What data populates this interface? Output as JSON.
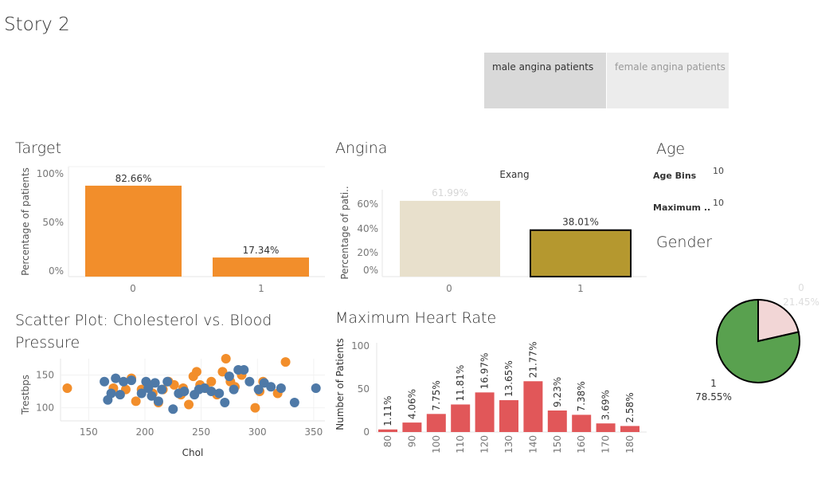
{
  "story": {
    "title": "Story 2",
    "tabs": [
      {
        "label": "male angina patients",
        "active": true
      },
      {
        "label": "female angina patients",
        "active": false
      }
    ]
  },
  "sheets": {
    "target": "Target",
    "angina": "Angina",
    "age": "Age",
    "gender": "Gender",
    "scatter": "Scatter Plot: Cholesterol vs. Blood Pressure",
    "heart_rate": "Maximum Heart Rate"
  },
  "age_filters": [
    {
      "label": "Age Bins",
      "value": "10"
    },
    {
      "label": "Maximum ..",
      "value": "10"
    }
  ],
  "colors": {
    "orange": "#f28e2b",
    "blue": "#4e79a7",
    "gold": "#b5982f",
    "beige": "#e8e0cc",
    "red": "#e15759",
    "green": "#59a14f",
    "pink": "#f2d6d6"
  },
  "chart_data": [
    {
      "id": "target",
      "type": "bar",
      "categories": [
        "0",
        "1"
      ],
      "values": [
        82.66,
        17.34
      ],
      "labels": [
        "82.66%",
        "17.34%"
      ],
      "ylabel": "Percentage of patients",
      "yticks": [
        "0%",
        "50%",
        "100%"
      ],
      "ylim": [
        0,
        100
      ]
    },
    {
      "id": "angina",
      "type": "bar",
      "title": "Exang",
      "categories": [
        "0",
        "1"
      ],
      "values": [
        61.99,
        38.01
      ],
      "labels": [
        "61.99%",
        "38.01%"
      ],
      "ylabel": "Percentage of pati..",
      "yticks": [
        "0%",
        "20%",
        "40%",
        "60%"
      ],
      "ylim": [
        0,
        70
      ]
    },
    {
      "id": "gender",
      "type": "pie",
      "slices": [
        {
          "label": "0",
          "value": 21.45,
          "pct": "21.45%"
        },
        {
          "label": "1",
          "value": 78.55,
          "pct": "78.55%"
        }
      ]
    },
    {
      "id": "scatter",
      "type": "scatter",
      "xlabel": "Chol",
      "ylabel": "Trestbps",
      "xticks": [
        "150",
        "200",
        "250",
        "300",
        "350"
      ],
      "yticks": [
        "100",
        "150"
      ],
      "xlim": [
        125,
        360
      ],
      "ylim": [
        80,
        175
      ],
      "series": [
        {
          "color": "orange",
          "points": [
            [
              131,
              130
            ],
            [
              172,
              130
            ],
            [
              183,
              128
            ],
            [
              188,
              145
            ],
            [
              192,
              110
            ],
            [
              197,
              128
            ],
            [
              204,
              135
            ],
            [
              207,
              122
            ],
            [
              212,
              108
            ],
            [
              216,
              128
            ],
            [
              221,
              140
            ],
            [
              226,
              135
            ],
            [
              232,
              120
            ],
            [
              234,
              130
            ],
            [
              239,
              105
            ],
            [
              243,
              148
            ],
            [
              246,
              155
            ],
            [
              249,
              135
            ],
            [
              254,
              130
            ],
            [
              259,
              140
            ],
            [
              264,
              120
            ],
            [
              269,
              155
            ],
            [
              272,
              175
            ],
            [
              276,
              140
            ],
            [
              280,
              132
            ],
            [
              286,
              150
            ],
            [
              298,
              100
            ],
            [
              302,
              125
            ],
            [
              305,
              140
            ],
            [
              318,
              122
            ],
            [
              325,
              170
            ]
          ]
        },
        {
          "color": "blue",
          "points": [
            [
              164,
              140
            ],
            [
              167,
              112
            ],
            [
              170,
              122
            ],
            [
              174,
              145
            ],
            [
              178,
              120
            ],
            [
              181,
              140
            ],
            [
              188,
              142
            ],
            [
              197,
              122
            ],
            [
              201,
              140
            ],
            [
              203,
              130
            ],
            [
              206,
              118
            ],
            [
              209,
              138
            ],
            [
              212,
              110
            ],
            [
              215,
              128
            ],
            [
              220,
              140
            ],
            [
              225,
              98
            ],
            [
              230,
              122
            ],
            [
              235,
              125
            ],
            [
              244,
              120
            ],
            [
              248,
              128
            ],
            [
              253,
              130
            ],
            [
              259,
              125
            ],
            [
              266,
              122
            ],
            [
              271,
              108
            ],
            [
              275,
              148
            ],
            [
              279,
              128
            ],
            [
              283,
              158
            ],
            [
              288,
              158
            ],
            [
              293,
              140
            ],
            [
              301,
              128
            ],
            [
              306,
              138
            ],
            [
              312,
              132
            ],
            [
              321,
              130
            ],
            [
              333,
              108
            ],
            [
              352,
              130
            ]
          ]
        }
      ]
    },
    {
      "id": "heart_rate",
      "type": "bar",
      "ylabel": "Number of Patients",
      "categories": [
        "80",
        "90",
        "100",
        "110",
        "120",
        "130",
        "140",
        "150",
        "160",
        "170",
        "180"
      ],
      "values": [
        3,
        11,
        21,
        32,
        46,
        37,
        59,
        25,
        20,
        10,
        7
      ],
      "labels": [
        "1.11%",
        "4.06%",
        "7.75%",
        "11.81%",
        "16.97%",
        "13.65%",
        "21.77%",
        "9.23%",
        "7.38%",
        "3.69%",
        "2.58%"
      ],
      "yticks": [
        "0",
        "50",
        "100"
      ],
      "ylim": [
        0,
        110
      ]
    }
  ]
}
